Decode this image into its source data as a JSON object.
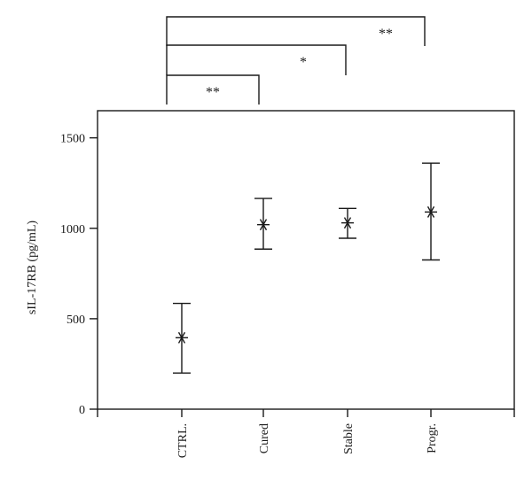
{
  "chart_data": {
    "type": "scatter",
    "title": "",
    "xlabel": "",
    "ylabel": "sIL-17RB (pg/mL)",
    "categories": [
      "CTRL.",
      "Cured",
      "Stable",
      "Progr."
    ],
    "series": [
      {
        "mean": [
          395,
          1020,
          1030,
          1090
        ],
        "lower": [
          200,
          885,
          945,
          825
        ],
        "upper": [
          585,
          1165,
          1110,
          1360
        ]
      }
    ],
    "ylim": [
      0,
      1650
    ],
    "yticks": [
      0,
      500,
      1000,
      1500
    ],
    "grid": false,
    "significance": [
      {
        "from": "CTRL.",
        "to": "Cured",
        "label": "**"
      },
      {
        "from": "CTRL.",
        "to": "Stable",
        "label": "*"
      },
      {
        "from": "CTRL.",
        "to": "Progr.",
        "label": "**"
      }
    ]
  }
}
